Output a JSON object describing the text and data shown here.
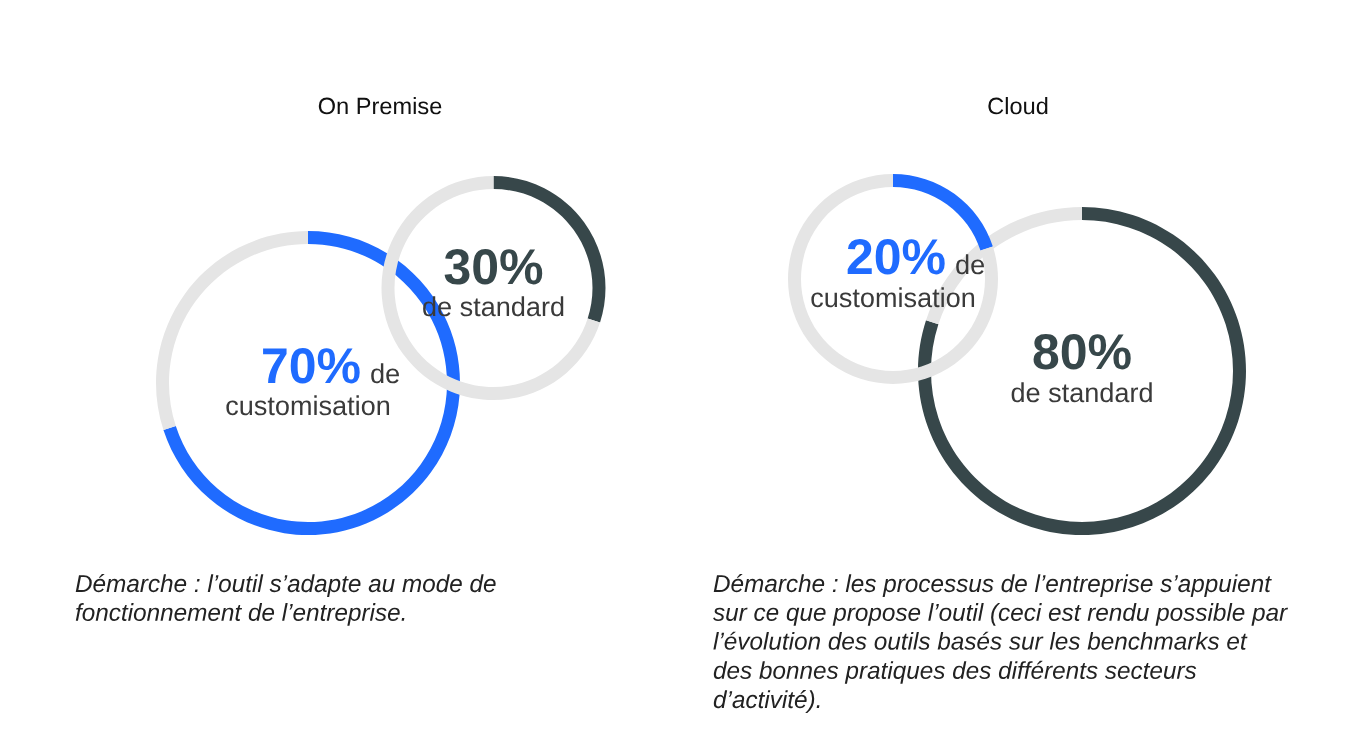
{
  "chart_data": [
    {
      "type": "donut",
      "title": "On Premise",
      "categories": [
        null,
        null
      ],
      "values": [
        70,
        30
      ],
      "colors": [
        "#1f6bff",
        "#e5e5e5"
      ],
      "value_labels": [
        "70%",
        null
      ],
      "annotations": [
        "de customisation",
        "Démarche : l’outil s’adapte au mode de\nfonctionnement de l’entreprise."
      ]
    },
    {
      "type": "donut",
      "categories": [
        null,
        null
      ],
      "values": [
        30,
        70
      ],
      "colors": [
        "#37474a",
        "#e5e5e5"
      ],
      "value_labels": [
        "30%",
        null
      ],
      "annotations": [
        "de standard"
      ]
    },
    {
      "type": "donut",
      "categories": [
        null,
        null
      ],
      "values": [
        20,
        80
      ],
      "colors": [
        "#1f6bff",
        "#e5e5e5"
      ],
      "value_labels": [
        "20%",
        null
      ],
      "annotations": [
        "de customisation"
      ]
    },
    {
      "type": "donut",
      "title": "Cloud",
      "categories": [
        null,
        null
      ],
      "values": [
        80,
        20
      ],
      "colors": [
        "#37474a",
        "#e5e5e5"
      ],
      "value_labels": [
        "80%",
        null
      ],
      "annotations": [
        "de standard",
        "Démarche : les processus de l’entreprise s’appuient\nsur ce que propose l’outil (ceci est rendu possible par\nl’évolution des outils basés sur les benchmarks et\ndes bonnes pratiques des différents secteurs\nd’activité)."
      ]
    }
  ]
}
